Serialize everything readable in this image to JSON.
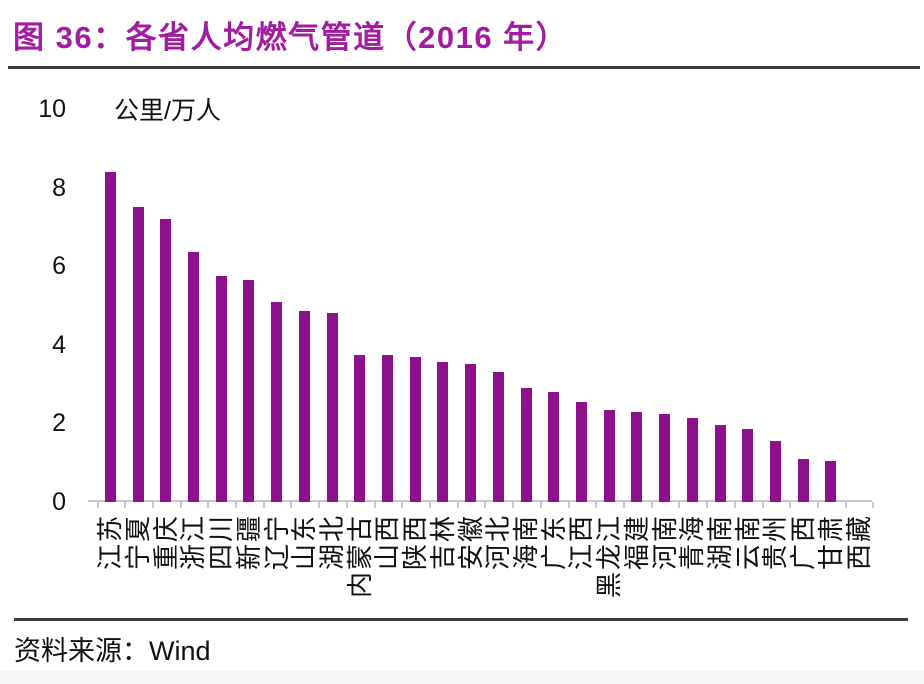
{
  "figure": {
    "title": "图 36：各省人均燃气管道（2016 年）",
    "source": {
      "label": "资料来源：",
      "value": "Wind"
    }
  },
  "colors": {
    "bar": "#8E118C",
    "title": "#A21BA0",
    "axis": "#C9C9CD",
    "rule": "#3B3B3B",
    "text": "#111111",
    "footer_band": "#F6F6F7"
  },
  "chart_data": {
    "type": "bar",
    "title": "各省人均燃气管道（2016 年）",
    "unit_label": "公里/万人",
    "xlabel": "",
    "ylabel": "公里/万人",
    "ylim": [
      0,
      10
    ],
    "yticks": [
      0,
      2,
      4,
      6,
      8,
      10
    ],
    "grid": false,
    "legend_position": "none",
    "categories": [
      "江苏",
      "宁夏",
      "重庆",
      "浙江",
      "四川",
      "新疆",
      "辽宁",
      "山东",
      "湖北",
      "内蒙古",
      "山西",
      "陕西",
      "吉林",
      "安徽",
      "河北",
      "海南",
      "广东",
      "江西",
      "黑龙江",
      "福建",
      "河南",
      "青海",
      "湖南",
      "云南",
      "贵州",
      "广西",
      "甘肃",
      "西藏"
    ],
    "values": [
      8.4,
      7.5,
      7.2,
      6.35,
      5.75,
      5.65,
      5.1,
      4.85,
      4.8,
      3.75,
      3.75,
      3.7,
      3.55,
      3.5,
      3.3,
      2.9,
      2.8,
      2.55,
      2.35,
      2.3,
      2.25,
      2.15,
      1.95,
      1.85,
      1.55,
      1.1,
      1.05,
      0
    ]
  }
}
